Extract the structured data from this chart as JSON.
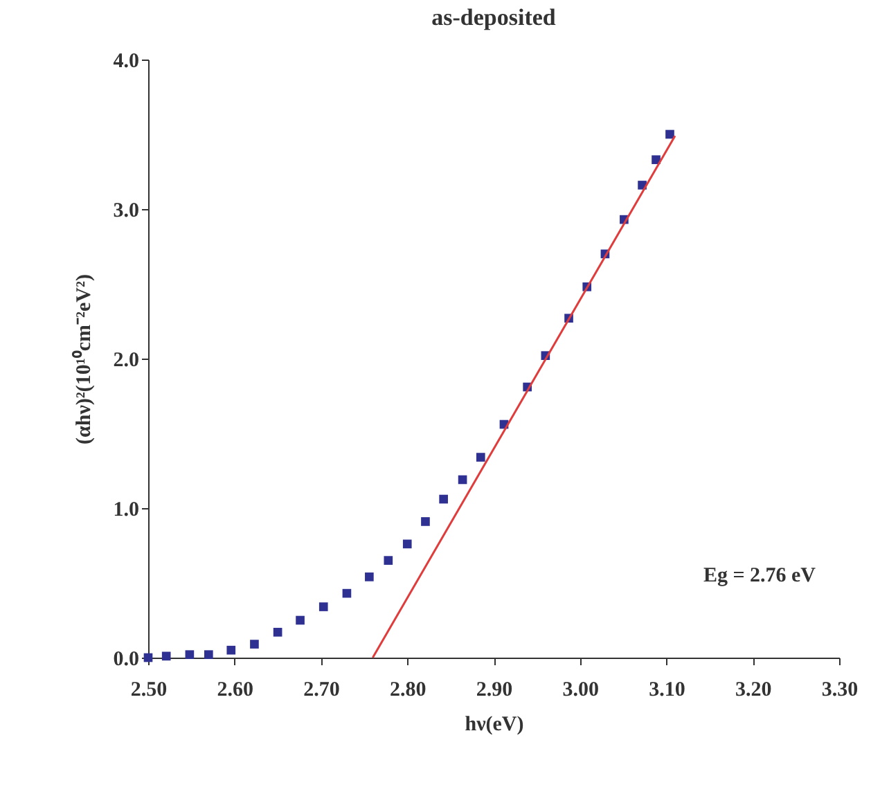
{
  "chart_data": {
    "type": "scatter",
    "title": "as-deposited",
    "xlabel": "hν(eV)",
    "ylabel": "(αhν)²(10¹⁰cm⁻²eV²)",
    "annotations": [
      "Eg = 2.76 eV"
    ],
    "xlim": [
      2.5,
      3.3
    ],
    "ylim": [
      0,
      4.0
    ],
    "xticks": [
      {
        "value": 2.5,
        "label": "2.50"
      },
      {
        "value": 2.6,
        "label": "2.60"
      },
      {
        "value": 2.7,
        "label": "2.70"
      },
      {
        "value": 2.8,
        "label": "2.80"
      },
      {
        "value": 2.9,
        "label": "2.90"
      },
      {
        "value": 3.0,
        "label": "3.00"
      },
      {
        "value": 3.1,
        "label": "3.10"
      },
      {
        "value": 3.2,
        "label": "3.20"
      },
      {
        "value": 3.3,
        "label": "3.30"
      }
    ],
    "yticks": [
      {
        "value": 0,
        "label": "0.0"
      },
      {
        "value": 1,
        "label": "1.0"
      },
      {
        "value": 2,
        "label": "2.0"
      },
      {
        "value": 3,
        "label": "3.0"
      },
      {
        "value": 4,
        "label": "4.0"
      }
    ],
    "grid": false,
    "series": [
      {
        "type": "scatter",
        "marker": "square",
        "color": "#2e3192",
        "x": [
          2.5,
          2.521,
          2.548,
          2.57,
          2.596,
          2.623,
          2.65,
          2.676,
          2.703,
          2.73,
          2.756,
          2.778,
          2.8,
          2.821,
          2.842,
          2.864,
          2.885,
          2.912,
          2.939,
          2.96,
          2.987,
          3.008,
          3.029,
          3.051,
          3.072,
          3.088,
          3.104
        ],
        "values": [
          0.0,
          0.01,
          0.02,
          0.02,
          0.05,
          0.09,
          0.17,
          0.25,
          0.34,
          0.43,
          0.54,
          0.65,
          0.76,
          0.91,
          1.06,
          1.19,
          1.34,
          1.56,
          1.81,
          2.02,
          2.27,
          2.48,
          2.7,
          2.93,
          3.16,
          3.33,
          3.5
        ]
      },
      {
        "type": "line",
        "marker": "none",
        "line_style": "solid",
        "color": "#e03c3c",
        "x": [
          2.76,
          3.11
        ],
        "values": [
          0.0,
          3.49
        ]
      }
    ]
  }
}
